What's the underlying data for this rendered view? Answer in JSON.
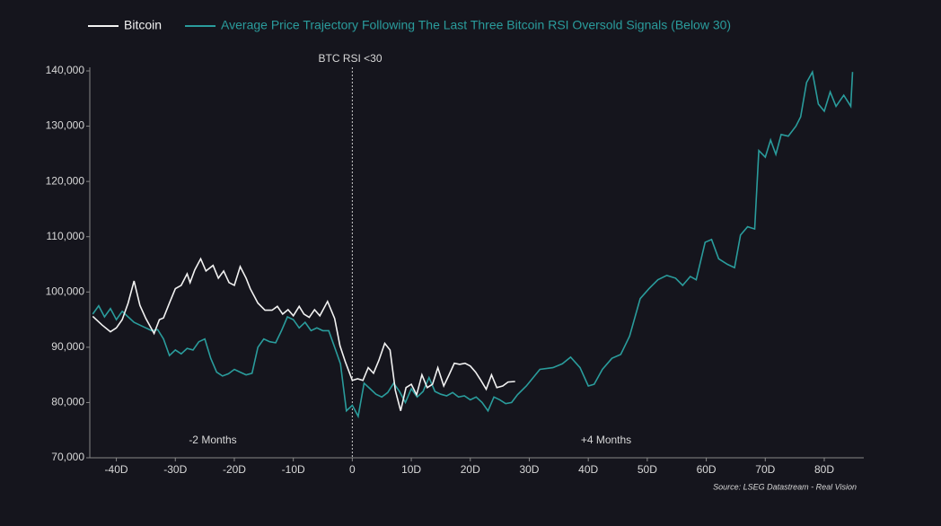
{
  "chart_data": {
    "type": "line",
    "annotations": [
      "BTC RSI <30",
      "-2 Months",
      "+4 Months",
      "Source: LSEG Datastream - Real Vision"
    ],
    "xlim": [
      -44.5,
      86.7
    ],
    "ylim": [
      70000,
      140000
    ],
    "xticks": [
      {
        "value": -40,
        "label": "-40D"
      },
      {
        "value": -30,
        "label": "-30D"
      },
      {
        "value": -20,
        "label": "-20D"
      },
      {
        "value": -10,
        "label": "-10D"
      },
      {
        "value": 0,
        "label": "0"
      },
      {
        "value": 10,
        "label": "10D"
      },
      {
        "value": 20,
        "label": "20D"
      },
      {
        "value": 30,
        "label": "30D"
      },
      {
        "value": 40,
        "label": "40D"
      },
      {
        "value": 50,
        "label": "50D"
      },
      {
        "value": 60,
        "label": "60D"
      },
      {
        "value": 70,
        "label": "70D"
      },
      {
        "value": 80,
        "label": "80D"
      }
    ],
    "yticks": [
      {
        "value": 70000,
        "label": "70,000"
      },
      {
        "value": 80000,
        "label": "80,000"
      },
      {
        "value": 90000,
        "label": "90,000"
      },
      {
        "value": 100000,
        "label": "100,000"
      },
      {
        "value": 110000,
        "label": "110,000"
      },
      {
        "value": 120000,
        "label": "120,000"
      },
      {
        "value": 130000,
        "label": "130,000"
      },
      {
        "value": 140000,
        "label": "140,000"
      }
    ],
    "grid": false,
    "series": [
      {
        "name": "Bitcoin",
        "color": "#f2f2f2",
        "x": [
          -44,
          -42.4,
          -41,
          -40,
          -39,
          -38,
          -37,
          -36,
          -35,
          -33.6,
          -32.7,
          -32,
          -31,
          -30,
          -29,
          -28,
          -27.5,
          -26.7,
          -25.7,
          -24.8,
          -23.6,
          -22.7,
          -21.8,
          -20.9,
          -20,
          -19,
          -18,
          -17.3,
          -16,
          -14.8,
          -13.6,
          -12.7,
          -11.8,
          -10.9,
          -10,
          -9,
          -8.2,
          -7.3,
          -6.4,
          -5.5,
          -4.2,
          -3,
          -2.1,
          -1.2,
          0,
          0.9,
          1.8,
          2.7,
          3.6,
          4.5,
          5.5,
          6.4,
          7.3,
          8.2,
          9.1,
          10,
          10.9,
          11.8,
          12.7,
          13.6,
          14.5,
          15.5,
          16.4,
          17.3,
          18.2,
          19.1,
          20,
          20.9,
          21.8,
          22.7,
          23.6,
          24.5,
          25.5,
          26.4,
          27.6
        ],
        "values": [
          95600,
          94000,
          92800,
          93500,
          95000,
          98000,
          102000,
          97600,
          95200,
          92500,
          95000,
          95300,
          98000,
          100600,
          101200,
          103300,
          101700,
          104000,
          106000,
          103800,
          104800,
          102500,
          103800,
          101700,
          101200,
          104600,
          102500,
          100600,
          98000,
          96700,
          96700,
          97400,
          96000,
          96800,
          95700,
          97400,
          96000,
          95400,
          96800,
          95700,
          98300,
          95200,
          90300,
          87400,
          84000,
          84300,
          84000,
          86300,
          85300,
          87600,
          90700,
          89500,
          82200,
          78500,
          82700,
          83300,
          81400,
          85000,
          82700,
          83300,
          86300,
          83000,
          85000,
          87100,
          86900,
          87100,
          86600,
          85500,
          84000,
          82400,
          85000,
          82700,
          83000,
          83700,
          83800
        ]
      },
      {
        "name": "Average Price Trajectory Following The Last Three Bitcoin RSI Oversold Signals (Below 30)",
        "color": "#2a9c9c",
        "x": [
          -44,
          -43,
          -42,
          -41,
          -40,
          -39,
          -38,
          -37,
          -36,
          -35,
          -34,
          -33,
          -32,
          -31,
          -30,
          -29,
          -28,
          -27,
          -26,
          -25,
          -24,
          -23,
          -22,
          -21,
          -20,
          -19,
          -18,
          -17,
          -16,
          -15,
          -14,
          -13,
          -12,
          -11,
          -10,
          -9,
          -8,
          -7,
          -6,
          -5,
          -4,
          -3,
          -2,
          -1,
          0,
          1,
          2,
          3,
          4,
          5,
          6,
          7,
          8,
          9,
          10,
          11,
          12,
          13,
          14,
          15,
          16,
          17,
          18,
          19,
          20,
          21,
          22,
          23,
          24,
          25,
          26,
          27,
          28,
          29.5,
          31.8,
          34,
          35.6,
          37,
          38.6,
          40,
          41,
          42.4,
          44,
          45.5,
          47,
          48.8,
          50.3,
          51.8,
          53.3,
          54.8,
          56,
          57.3,
          58.3,
          59.8,
          60.9,
          62.1,
          63.6,
          64.8,
          65.8,
          67,
          68.2,
          68.9,
          70,
          70.9,
          71.8,
          72.7,
          73.9,
          75.2,
          76,
          77,
          78,
          79,
          80,
          81,
          82,
          83.3,
          84.5,
          84.8
        ],
        "values": [
          96000,
          97500,
          95500,
          97000,
          95000,
          96500,
          95500,
          94500,
          94000,
          93500,
          93000,
          93200,
          91500,
          88500,
          89500,
          88800,
          89800,
          89500,
          91000,
          91500,
          88000,
          85500,
          84800,
          85200,
          86000,
          85500,
          85000,
          85300,
          90000,
          91500,
          91000,
          90800,
          93000,
          95500,
          95000,
          93500,
          94500,
          93000,
          93500,
          93000,
          93000,
          90000,
          87000,
          78500,
          79500,
          77500,
          83500,
          82500,
          81500,
          81000,
          81800,
          83500,
          82000,
          80000,
          82500,
          81000,
          82000,
          84500,
          82000,
          81500,
          81200,
          81800,
          81000,
          81200,
          80500,
          81000,
          80000,
          78500,
          81000,
          80500,
          79800,
          80000,
          81400,
          83000,
          86000,
          86300,
          87000,
          88200,
          86300,
          83000,
          83300,
          86000,
          88000,
          88700,
          92000,
          98800,
          100600,
          102200,
          103000,
          102500,
          101200,
          102800,
          102200,
          109000,
          109500,
          106000,
          105000,
          104400,
          110300,
          111800,
          111400,
          125600,
          124400,
          127500,
          124900,
          128500,
          128200,
          130000,
          131700,
          137900,
          139800,
          134000,
          132700,
          136200,
          133600,
          135600,
          133600,
          139800
        ]
      }
    ]
  }
}
